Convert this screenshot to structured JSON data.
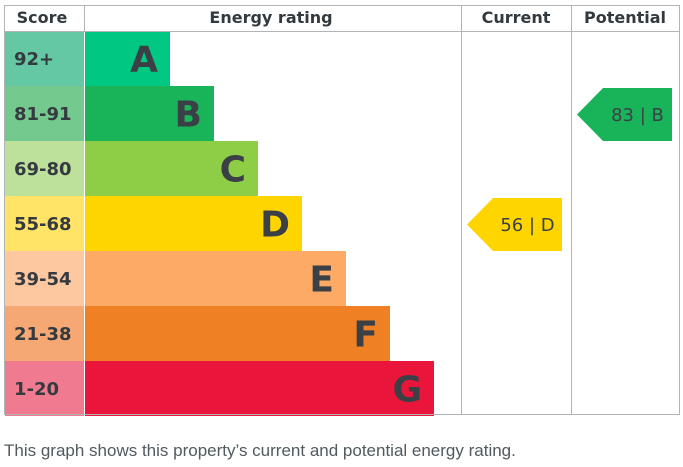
{
  "headers": {
    "score": "Score",
    "rating": "Energy rating",
    "current": "Current",
    "potential": "Potential"
  },
  "chart_data": {
    "type": "bar",
    "categories": [
      "A",
      "B",
      "C",
      "D",
      "E",
      "F",
      "G"
    ],
    "bands": [
      {
        "letter": "A",
        "range": "92+",
        "bar_color": "#00c781",
        "score_color": "#64c8a5"
      },
      {
        "letter": "B",
        "range": "81-91",
        "bar_color": "#19b459",
        "score_color": "#74c98f"
      },
      {
        "letter": "C",
        "range": "69-80",
        "bar_color": "#8dce46",
        "score_color": "#bde19a"
      },
      {
        "letter": "D",
        "range": "55-68",
        "bar_color": "#ffd500",
        "score_color": "#ffe468"
      },
      {
        "letter": "E",
        "range": "39-54",
        "bar_color": "#fcaa65",
        "score_color": "#fdc7a0"
      },
      {
        "letter": "F",
        "range": "21-38",
        "bar_color": "#ef8023",
        "score_color": "#f5a874"
      },
      {
        "letter": "G",
        "range": "1-20",
        "bar_color": "#e9153b",
        "score_color": "#f07b90"
      }
    ],
    "current": {
      "value": 56,
      "band": "D",
      "label": "56 | D",
      "color": "#ffd500"
    },
    "potential": {
      "value": 83,
      "band": "B",
      "label": "83 | B",
      "color": "#19b459"
    }
  },
  "caption": "This graph shows this property’s current and potential energy rating."
}
